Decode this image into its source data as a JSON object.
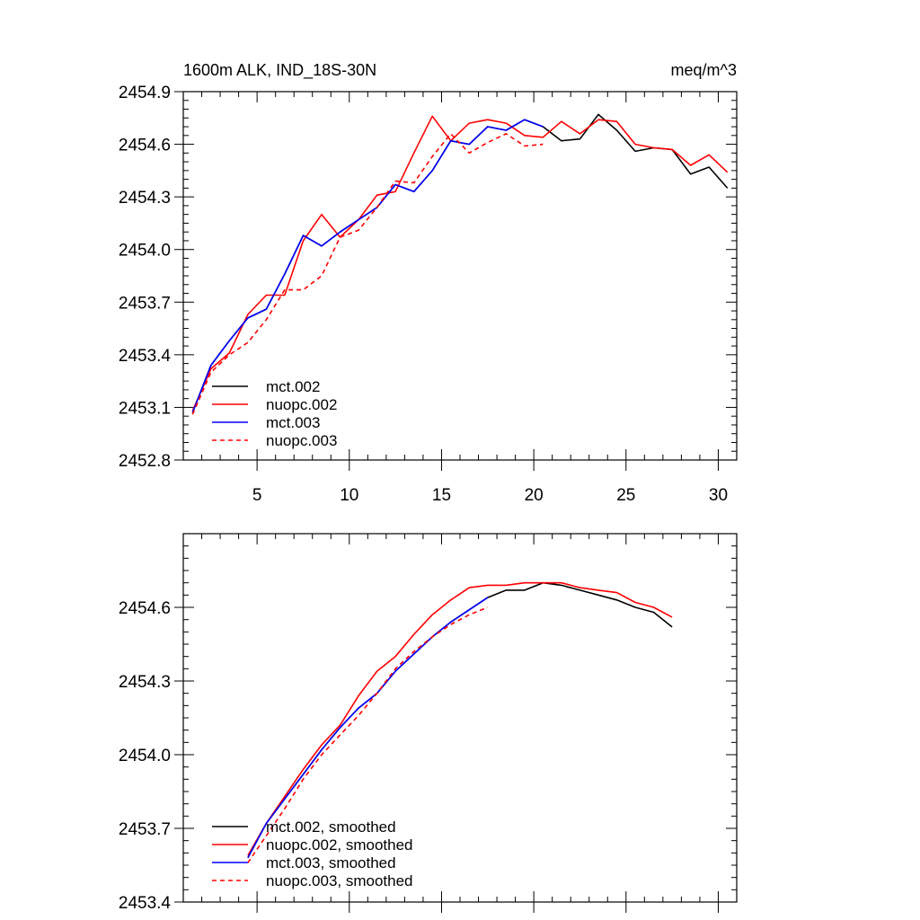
{
  "chart_data": [
    {
      "type": "line",
      "title": "1600m ALK, IND_18S-30N",
      "units": "meq/m^3",
      "xlim": [
        1,
        31
      ],
      "ylim": [
        2452.8,
        2454.9
      ],
      "xticks": [
        5,
        10,
        15,
        20,
        25,
        30
      ],
      "xtick_labels": [
        "5",
        "10",
        "15",
        "20",
        "25",
        "30"
      ],
      "yticks": [
        2452.8,
        2453.1,
        2453.4,
        2453.7,
        2454.0,
        2454.3,
        2454.6,
        2454.9
      ],
      "ytick_labels": [
        "2452.8",
        "2453.1",
        "2453.4",
        "2453.7",
        "2454.0",
        "2454.3",
        "2454.6",
        "2454.9"
      ],
      "legend_position": "bottom-left",
      "series": [
        {
          "name": "mct.002",
          "color": "#000000",
          "dash": "solid",
          "x": [
            1.5,
            2.5,
            3.5,
            4.5,
            5.5,
            6.5,
            7.5,
            8.5,
            9.5,
            10.5,
            11.5,
            12.5,
            13.5,
            14.5,
            15.5,
            16.5,
            17.5,
            18.5,
            19.5,
            20.5,
            21.5,
            22.5,
            23.5,
            24.5,
            25.5,
            26.5,
            27.5,
            28.5,
            29.5,
            30.5
          ],
          "y": [
            2453.07,
            2453.34,
            2453.48,
            2453.61,
            2453.66,
            2453.86,
            2454.08,
            2454.02,
            2454.1,
            2454.17,
            2454.24,
            2454.37,
            2454.33,
            2454.45,
            2454.62,
            2454.6,
            2454.7,
            2454.68,
            2454.74,
            2454.7,
            2454.62,
            2454.63,
            2454.77,
            2454.68,
            2454.56,
            2454.58,
            2454.57,
            2454.43,
            2454.47,
            2454.35
          ]
        },
        {
          "name": "nuopc.002",
          "color": "#ff0000",
          "dash": "solid",
          "x": [
            1.5,
            2.5,
            3.5,
            4.5,
            5.5,
            6.5,
            7.5,
            8.5,
            9.5,
            10.5,
            11.5,
            12.5,
            13.5,
            14.5,
            15.5,
            16.5,
            17.5,
            18.5,
            19.5,
            20.5,
            21.5,
            22.5,
            23.5,
            24.5,
            25.5,
            26.5,
            27.5,
            28.5,
            29.5,
            30.5
          ],
          "y": [
            2453.08,
            2453.32,
            2453.41,
            2453.63,
            2453.74,
            2453.74,
            2454.05,
            2454.2,
            2454.07,
            2454.17,
            2454.31,
            2454.33,
            2454.55,
            2454.76,
            2454.62,
            2454.72,
            2454.74,
            2454.72,
            2454.65,
            2454.64,
            2454.73,
            2454.66,
            2454.74,
            2454.73,
            2454.6,
            2454.58,
            2454.57,
            2454.48,
            2454.54,
            2454.44
          ]
        },
        {
          "name": "mct.003",
          "color": "#0000ff",
          "dash": "solid",
          "x": [
            1.5,
            2.5,
            3.5,
            4.5,
            5.5,
            6.5,
            7.5,
            8.5,
            9.5,
            10.5,
            11.5,
            12.5,
            13.5,
            14.5,
            15.5,
            16.5,
            17.5,
            18.5,
            19.5,
            20.5
          ],
          "y": [
            2453.07,
            2453.34,
            2453.48,
            2453.61,
            2453.66,
            2453.86,
            2454.08,
            2454.02,
            2454.1,
            2454.17,
            2454.24,
            2454.37,
            2454.33,
            2454.45,
            2454.62,
            2454.6,
            2454.7,
            2454.68,
            2454.74,
            2454.7
          ]
        },
        {
          "name": "nuopc.003",
          "color": "#ff0000",
          "dash": "dashed",
          "x": [
            1.5,
            2.5,
            3.5,
            4.5,
            5.5,
            6.5,
            7.5,
            8.5,
            9.5,
            10.5,
            11.5,
            12.5,
            13.5,
            14.5,
            15.5,
            16.5,
            17.5,
            18.5,
            19.5,
            20.5
          ],
          "y": [
            2453.06,
            2453.3,
            2453.4,
            2453.47,
            2453.6,
            2453.77,
            2453.77,
            2453.85,
            2454.07,
            2454.11,
            2454.24,
            2454.39,
            2454.38,
            2454.53,
            2454.66,
            2454.55,
            2454.61,
            2454.66,
            2454.59,
            2454.6
          ]
        }
      ]
    },
    {
      "type": "line",
      "xlim": [
        1,
        31
      ],
      "ylim": [
        2453.4,
        2454.9
      ],
      "xticks": [
        5,
        10,
        15,
        20,
        25,
        30
      ],
      "yticks": [
        2453.4,
        2453.7,
        2454.0,
        2454.3,
        2454.6
      ],
      "ytick_labels": [
        "2453.4",
        "2453.7",
        "2454.0",
        "2454.3",
        "2454.6"
      ],
      "legend_position": "bottom-left",
      "series": [
        {
          "name": "mct.002, smoothed",
          "color": "#000000",
          "dash": "solid",
          "x": [
            4.5,
            5.5,
            6.5,
            7.5,
            8.5,
            9.5,
            10.5,
            11.5,
            12.5,
            13.5,
            14.5,
            15.5,
            16.5,
            17.5,
            18.5,
            19.5,
            20.5,
            21.5,
            22.5,
            23.5,
            24.5,
            25.5,
            26.5,
            27.5
          ],
          "y": [
            2453.58,
            2453.72,
            2453.82,
            2453.92,
            2454.02,
            2454.11,
            2454.19,
            2454.25,
            2454.34,
            2454.41,
            2454.48,
            2454.54,
            2454.59,
            2454.64,
            2454.67,
            2454.67,
            2454.7,
            2454.69,
            2454.67,
            2454.65,
            2454.63,
            2454.6,
            2454.58,
            2454.52
          ]
        },
        {
          "name": "nuopc.002, smoothed",
          "color": "#ff0000",
          "dash": "solid",
          "x": [
            4.5,
            5.5,
            6.5,
            7.5,
            8.5,
            9.5,
            10.5,
            11.5,
            12.5,
            13.5,
            14.5,
            15.5,
            16.5,
            17.5,
            18.5,
            19.5,
            20.5,
            21.5,
            22.5,
            23.5,
            24.5,
            25.5,
            26.5,
            27.5
          ],
          "y": [
            2453.59,
            2453.72,
            2453.83,
            2453.94,
            2454.04,
            2454.12,
            2454.24,
            2454.34,
            2454.4,
            2454.49,
            2454.57,
            2454.63,
            2454.68,
            2454.69,
            2454.69,
            2454.7,
            2454.7,
            2454.7,
            2454.68,
            2454.67,
            2454.66,
            2454.62,
            2454.6,
            2454.56
          ]
        },
        {
          "name": "mct.003, smoothed",
          "color": "#0000ff",
          "dash": "solid",
          "x": [
            4.5,
            5.5,
            6.5,
            7.5,
            8.5,
            9.5,
            10.5,
            11.5,
            12.5,
            13.5,
            14.5,
            15.5,
            16.5,
            17.5
          ],
          "y": [
            2453.58,
            2453.72,
            2453.82,
            2453.92,
            2454.02,
            2454.11,
            2454.19,
            2454.25,
            2454.34,
            2454.41,
            2454.48,
            2454.54,
            2454.59,
            2454.64
          ]
        },
        {
          "name": "nuopc.003, smoothed",
          "color": "#ff0000",
          "dash": "dashed",
          "x": [
            4.5,
            5.5,
            6.5,
            7.5,
            8.5,
            9.5,
            10.5,
            11.5,
            12.5,
            13.5,
            14.5,
            15.5,
            16.5,
            17.5
          ],
          "y": [
            2453.56,
            2453.67,
            2453.78,
            2453.9,
            2454.0,
            2454.08,
            2454.16,
            2454.25,
            2454.35,
            2454.42,
            2454.48,
            2454.53,
            2454.57,
            2454.6
          ]
        }
      ]
    }
  ]
}
